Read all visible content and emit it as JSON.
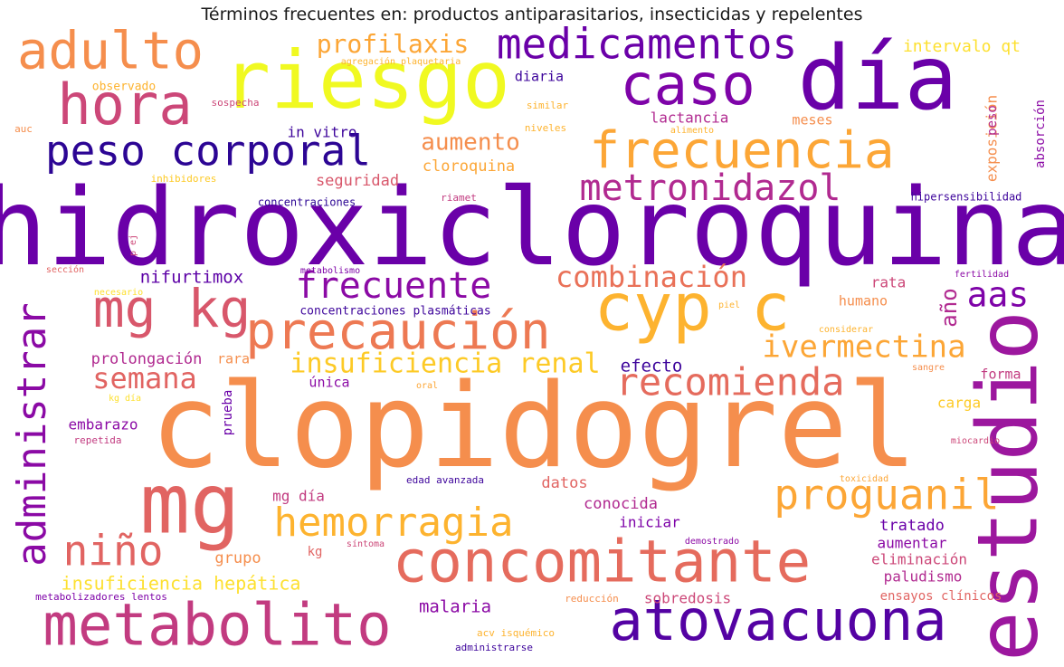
{
  "chart_data": {
    "type": "wordcloud",
    "title": "Términos frecuentes en: productos antiparasitarios, insecticidas y repelentes",
    "words": [
      {
        "text": "hidroxicloroquina",
        "weight": 100,
        "color": "#6a00a8"
      },
      {
        "text": "clopidogrel",
        "weight": 98,
        "color": "#f58e4d"
      },
      {
        "text": "día",
        "weight": 72,
        "color": "#6a00a8"
      },
      {
        "text": "estudio",
        "weight": 70,
        "color": "#9c179e"
      },
      {
        "text": "riesgo",
        "weight": 66,
        "color": "#f0f921"
      },
      {
        "text": "mg",
        "weight": 66,
        "color": "#e16462"
      },
      {
        "text": "cyp c",
        "weight": 60,
        "color": "#fdb32f"
      },
      {
        "text": "metabolito",
        "weight": 58,
        "color": "#c23b80"
      },
      {
        "text": "caso",
        "weight": 56,
        "color": "#7e03a8"
      },
      {
        "text": "concomitante",
        "weight": 56,
        "color": "#e56b5d"
      },
      {
        "text": "atovacuona",
        "weight": 56,
        "color": "#5402a3"
      },
      {
        "text": "hora",
        "weight": 55,
        "color": "#cc4778"
      },
      {
        "text": "adulto",
        "weight": 52,
        "color": "#f58e4d"
      },
      {
        "text": "frecuencia",
        "weight": 50,
        "color": "#fca636"
      },
      {
        "text": "mg kg",
        "weight": 50,
        "color": "#d8576b"
      },
      {
        "text": "precaución",
        "weight": 48,
        "color": "#ed7953"
      },
      {
        "text": "administrar",
        "weight": 47,
        "color": "#8b0aa5"
      },
      {
        "text": "peso corporal",
        "weight": 46,
        "color": "#2c0594"
      },
      {
        "text": "medicamentos",
        "weight": 44,
        "color": "#6a00a8"
      },
      {
        "text": "niño",
        "weight": 44,
        "color": "#e16462"
      },
      {
        "text": "proguanil",
        "weight": 42,
        "color": "#fca636"
      },
      {
        "text": "hemorragia",
        "weight": 40,
        "color": "#fdb32f"
      },
      {
        "text": "metronidazol",
        "weight": 38,
        "color": "#b12a90"
      },
      {
        "text": "recomienda",
        "weight": 38,
        "color": "#e56b5d"
      },
      {
        "text": "frecuente",
        "weight": 37,
        "color": "#8b0aa5"
      },
      {
        "text": "aas",
        "weight": 34,
        "color": "#7e03a8"
      },
      {
        "text": "ivermectina",
        "weight": 31,
        "color": "#fca636"
      },
      {
        "text": "combinación",
        "weight": 30,
        "color": "#e97158"
      },
      {
        "text": "semana",
        "weight": 29,
        "color": "#e16462"
      },
      {
        "text": "insuficiencia renal",
        "weight": 28,
        "color": "#fdca26"
      },
      {
        "text": "profilaxis",
        "weight": 27,
        "color": "#fca636"
      },
      {
        "text": "aumento",
        "weight": 24,
        "color": "#f58e4d"
      },
      {
        "text": "año",
        "weight": 22,
        "color": "#b12a90"
      },
      {
        "text": "insuficiencia hepática",
        "weight": 20,
        "color": "#fde030"
      },
      {
        "text": "nifurtimox",
        "weight": 19,
        "color": "#5c01a6"
      },
      {
        "text": "ensayos clínicos",
        "weight": 12,
        "color": "#e16462"
      },
      {
        "text": "malaria",
        "weight": 18,
        "color": "#8b0aa5"
      },
      {
        "text": "intervalo qt",
        "weight": 16,
        "color": "#fde030"
      },
      {
        "text": "exposición",
        "weight": 15,
        "color": "#f58e4d"
      },
      {
        "text": "cloroquina",
        "weight": 17,
        "color": "#fca636"
      },
      {
        "text": "seguridad",
        "weight": 17,
        "color": "#d8576b"
      },
      {
        "text": "efecto",
        "weight": 18,
        "color": "#3d049b"
      },
      {
        "text": "prolongación",
        "weight": 16,
        "color": "#b12a90"
      },
      {
        "text": "conocida",
        "weight": 17,
        "color": "#b12a90"
      },
      {
        "text": "datos",
        "weight": 17,
        "color": "#e16462"
      },
      {
        "text": "grupo",
        "weight": 17,
        "color": "#f58e4d"
      },
      {
        "text": "tratado",
        "weight": 17,
        "color": "#6a00a8"
      },
      {
        "text": "sobredosis",
        "weight": 16,
        "color": "#cc4778"
      },
      {
        "text": "eliminación",
        "weight": 16,
        "color": "#cc4778"
      },
      {
        "text": "paludismo",
        "weight": 16,
        "color": "#b12a90"
      },
      {
        "text": "iniciar",
        "weight": 16,
        "color": "#7e03a8"
      },
      {
        "text": "mg día",
        "weight": 16,
        "color": "#c23b80"
      },
      {
        "text": "aumentar",
        "weight": 16,
        "color": "#8b0aa5"
      },
      {
        "text": "embarazo",
        "weight": 16,
        "color": "#8b0aa5"
      },
      {
        "text": "lactancia",
        "weight": 16,
        "color": "#b12a90"
      },
      {
        "text": "rata",
        "weight": 16,
        "color": "#cc4778"
      },
      {
        "text": "humano",
        "weight": 15,
        "color": "#f58e4d"
      },
      {
        "text": "forma",
        "weight": 15,
        "color": "#c23b80"
      },
      {
        "text": "carga",
        "weight": 16,
        "color": "#fdca26"
      },
      {
        "text": "in vitro",
        "weight": 16,
        "color": "#3d049b"
      },
      {
        "text": "diaria",
        "weight": 15,
        "color": "#3d049b"
      },
      {
        "text": "meses",
        "weight": 15,
        "color": "#f58e4d"
      },
      {
        "text": "peso",
        "weight": 14,
        "color": "#b12a90"
      },
      {
        "text": "absorción",
        "weight": 14,
        "color": "#8b0aa5"
      },
      {
        "text": "única",
        "weight": 15,
        "color": "#8b0aa5"
      },
      {
        "text": "rara",
        "weight": 15,
        "color": "#f58e4d"
      },
      {
        "text": "prueba",
        "weight": 14,
        "color": "#6a00a8"
      },
      {
        "text": "kg",
        "weight": 14,
        "color": "#e16462"
      },
      {
        "text": "observado",
        "weight": 13,
        "color": "#fdb32f"
      },
      {
        "text": "concentraciones",
        "weight": 12,
        "color": "#2c0594"
      },
      {
        "text": "concentraciones plasmáticas",
        "weight": 13,
        "color": "#3d049b"
      },
      {
        "text": "hipersensibilidad",
        "weight": 12,
        "color": "#3d049b"
      },
      {
        "text": "riamet",
        "weight": 11,
        "color": "#c23b80"
      },
      {
        "text": "similar",
        "weight": 11,
        "color": "#fdb32f"
      },
      {
        "text": "niveles",
        "weight": 11,
        "color": "#fdb32f"
      },
      {
        "text": "alimento",
        "weight": 10,
        "color": "#fdb32f"
      },
      {
        "text": "sospecha",
        "weight": 11,
        "color": "#cc4778"
      },
      {
        "text": "auc",
        "weight": 11,
        "color": "#f58e4d"
      },
      {
        "text": "inhibidores",
        "weight": 11,
        "color": "#fdca26"
      },
      {
        "text": "agregación plaquetaria",
        "weight": 10,
        "color": "#fdb32f"
      },
      {
        "text": "edad avanzada",
        "weight": 11,
        "color": "#3d049b"
      },
      {
        "text": "repetida",
        "weight": 11,
        "color": "#c23b80"
      },
      {
        "text": "kg día",
        "weight": 10,
        "color": "#fde030"
      },
      {
        "text": "oral",
        "weight": 10,
        "color": "#fca636"
      },
      {
        "text": "sangre",
        "weight": 10,
        "color": "#f58e4d"
      },
      {
        "text": "considerar",
        "weight": 10,
        "color": "#fdb32f"
      },
      {
        "text": "piel",
        "weight": 10,
        "color": "#fdb32f"
      },
      {
        "text": "fertilidad",
        "weight": 10,
        "color": "#8b0aa5"
      },
      {
        "text": "miocardio",
        "weight": 10,
        "color": "#cc4778"
      },
      {
        "text": "toxicidad",
        "weight": 10,
        "color": "#fca636"
      },
      {
        "text": "demostrado",
        "weight": 10,
        "color": "#8b0aa5"
      },
      {
        "text": "síntoma",
        "weight": 10,
        "color": "#cc4778"
      },
      {
        "text": "reducción",
        "weight": 11,
        "color": "#f58e4d"
      },
      {
        "text": "acv isquémico",
        "weight": 11,
        "color": "#fdb32f"
      },
      {
        "text": "administrarse",
        "weight": 11,
        "color": "#3d049b"
      },
      {
        "text": "metabolizadores lentos",
        "weight": 11,
        "color": "#7e03a8"
      },
      {
        "text": "metabolismo",
        "weight": 10,
        "color": "#7e03a8"
      },
      {
        "text": "sección",
        "weight": 10,
        "color": "#e16462"
      },
      {
        "text": "necesario",
        "weight": 10,
        "color": "#fde030"
      },
      {
        "text": "p ej",
        "weight": 10,
        "color": "#cc4778"
      }
    ]
  }
}
